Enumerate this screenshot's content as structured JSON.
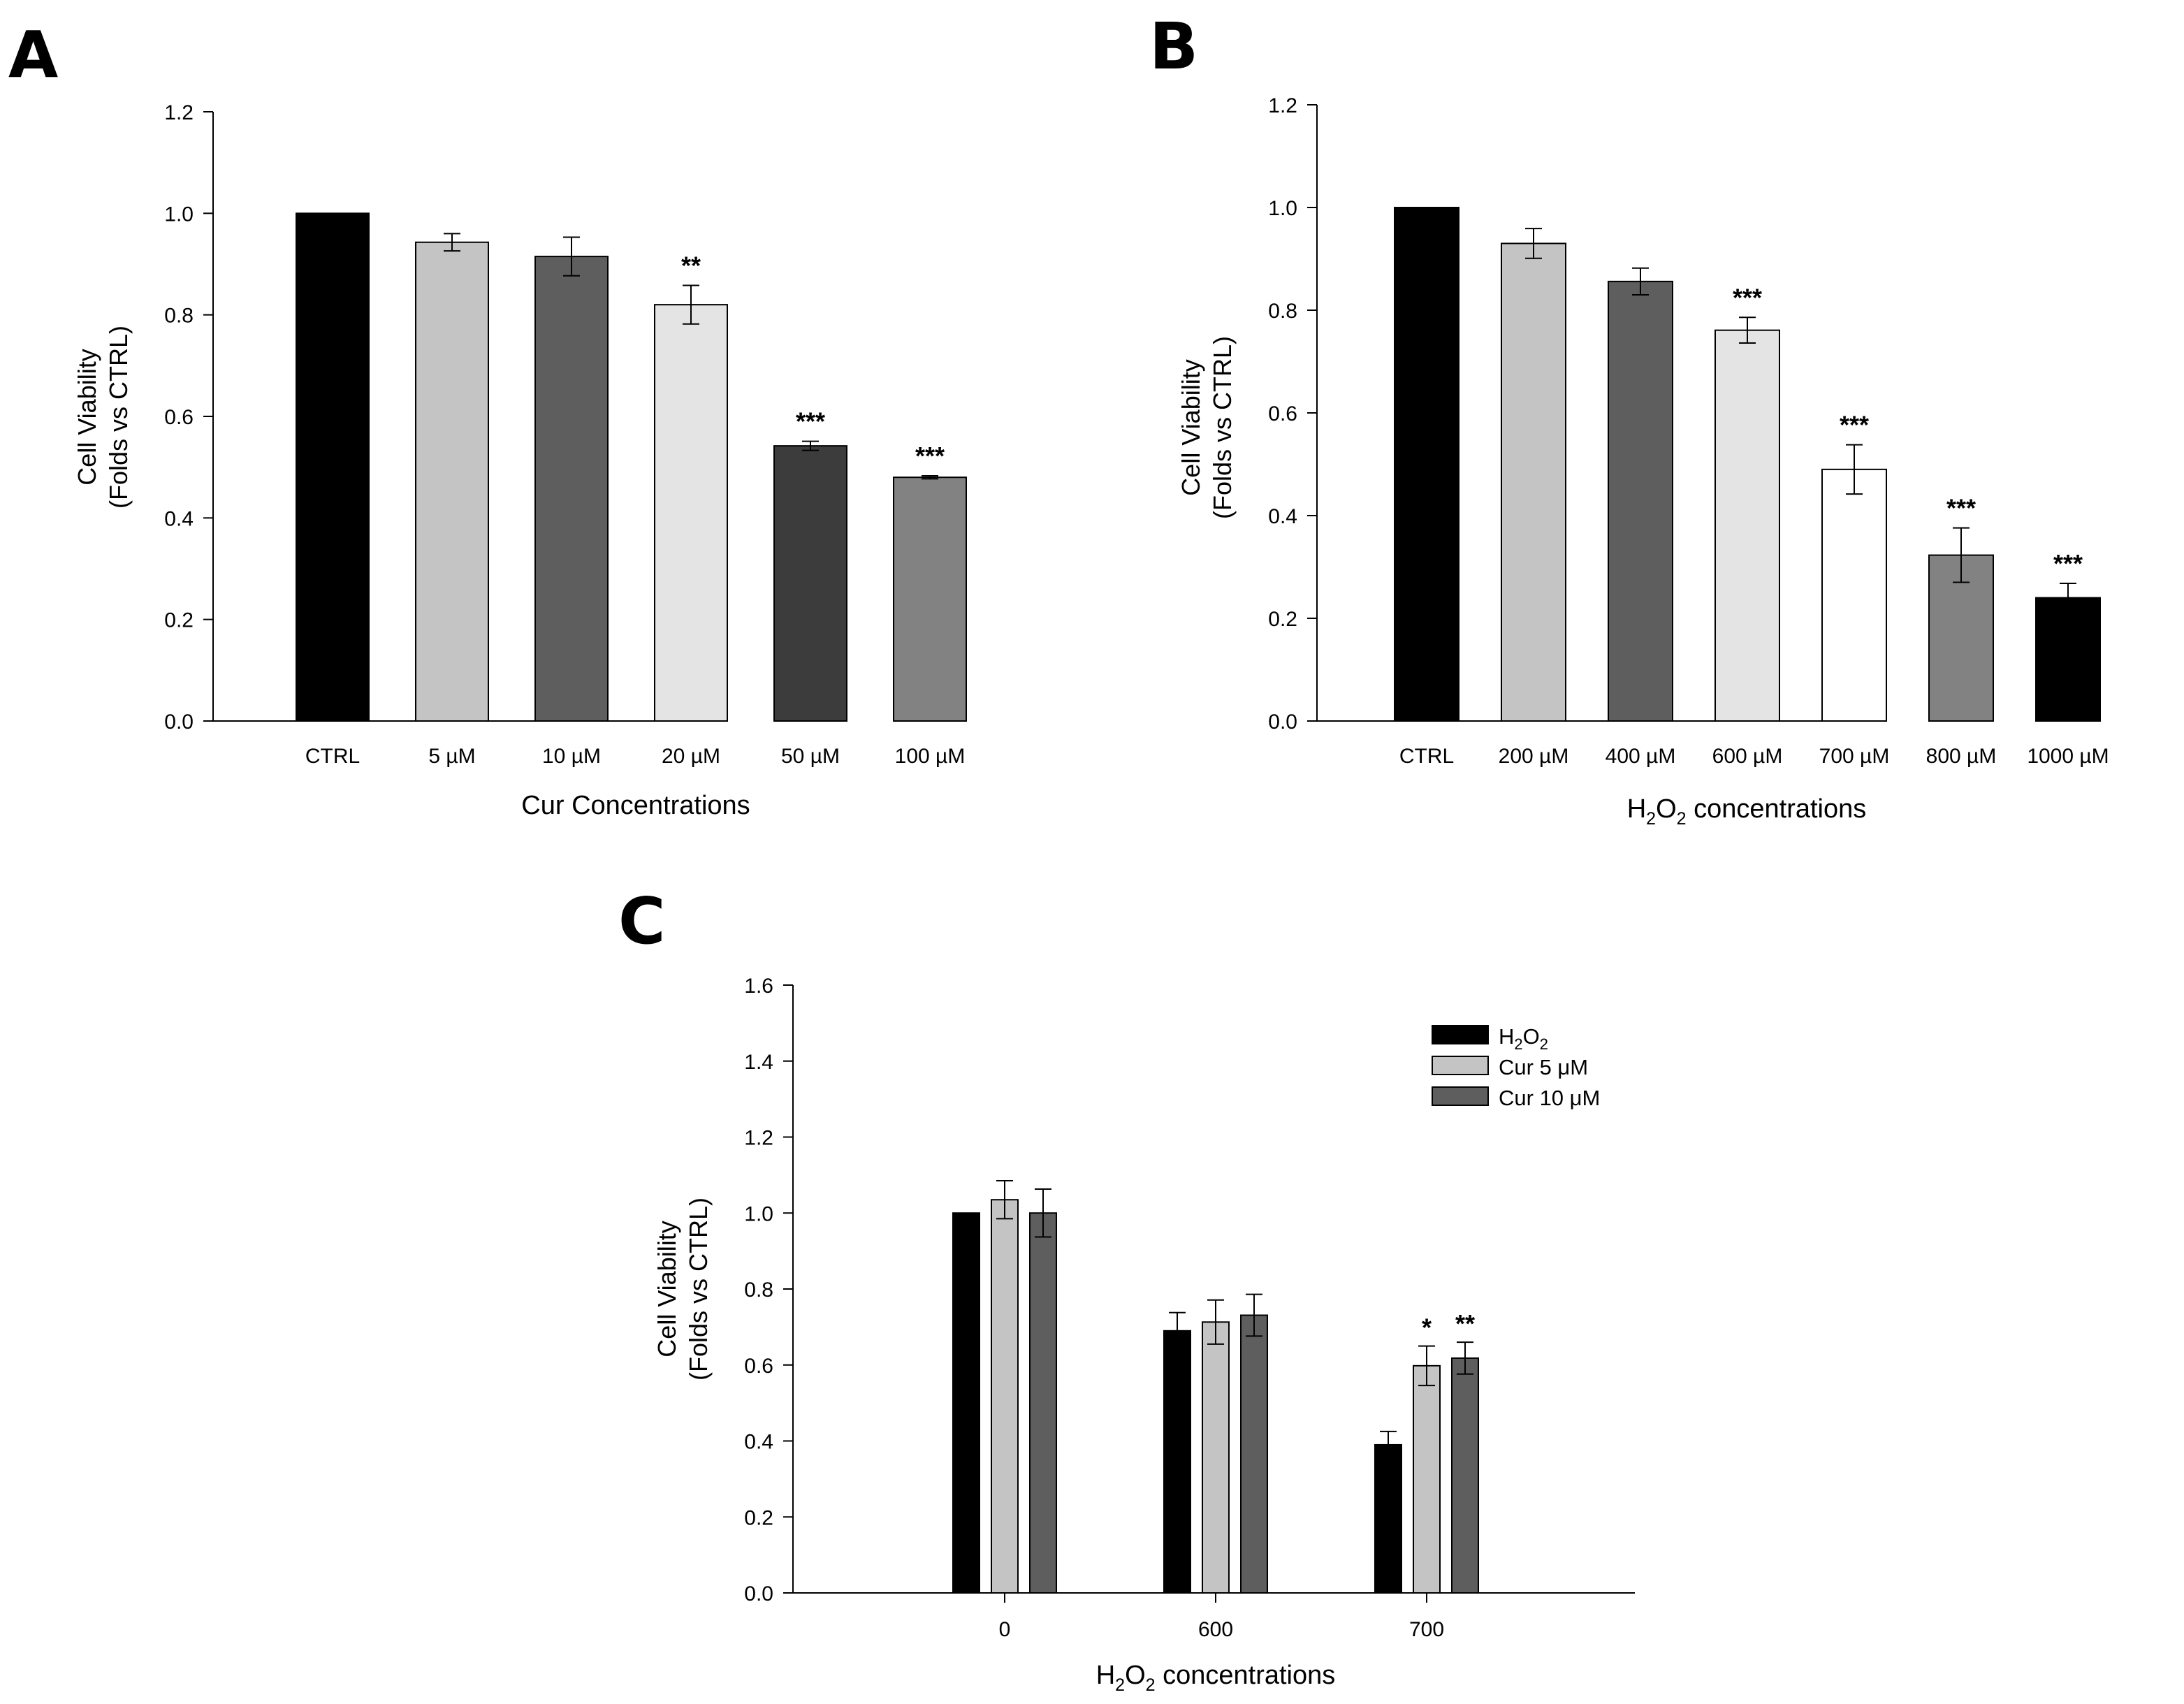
{
  "colors": {
    "black": "#000000",
    "light_gray": "#c4c4c4",
    "dark_gray": "#5e5e5e",
    "very_light_gray": "#e4e4e4",
    "charcoal": "#3c3c3c",
    "mid_gray": "#828282",
    "white": "#ffffff"
  },
  "chart_data": [
    {
      "panel": "A",
      "type": "bar",
      "title": "",
      "ylabel_line1": "Cell Viability",
      "ylabel_line2": "(Folds vs CTRL)",
      "xlabel": "Cur Concentrations",
      "ylim": [
        0,
        1.2
      ],
      "yticks": [
        "0.0",
        "0.2",
        "0.4",
        "0.6",
        "0.8",
        "1.0",
        "1.2"
      ],
      "categories": [
        "CTRL",
        "5 µM",
        "10 µM",
        "20 µM",
        "50 µM",
        "100 µM"
      ],
      "values": [
        1.0,
        0.943,
        0.915,
        0.82,
        0.542,
        0.48
      ],
      "errors": [
        0.0,
        0.017,
        0.038,
        0.038,
        0.009,
        0.003
      ],
      "significance": [
        "",
        "",
        "",
        "**",
        "***",
        "***"
      ],
      "bar_colors": [
        "#000000",
        "#c4c4c4",
        "#5e5e5e",
        "#e4e4e4",
        "#3c3c3c",
        "#828282"
      ]
    },
    {
      "panel": "B",
      "type": "bar",
      "title": "",
      "ylabel_line1": "Cell Viability",
      "ylabel_line2": "(Folds vs CTRL)",
      "xlabel_pre": "H",
      "xlabel_sub1": "2",
      "xlabel_mid": "O",
      "xlabel_sub2": "2",
      "xlabel_post": " concentrations",
      "ylim": [
        0,
        1.2
      ],
      "yticks": [
        "0.0",
        "0.2",
        "0.4",
        "0.6",
        "0.8",
        "1.0",
        "1.2"
      ],
      "categories": [
        "CTRL",
        "200 µM",
        "400 µM",
        "600 µM",
        "700 µM",
        "800 µM",
        "1000 µM"
      ],
      "values": [
        1.0,
        0.93,
        0.856,
        0.761,
        0.49,
        0.323,
        0.24
      ],
      "errors": [
        0.0,
        0.029,
        0.026,
        0.025,
        0.048,
        0.053,
        0.028
      ],
      "significance": [
        "",
        "",
        "",
        "***",
        "***",
        "***",
        "***"
      ],
      "bar_colors": [
        "#000000",
        "#c4c4c4",
        "#5e5e5e",
        "#e4e4e4",
        "#ffffff",
        "#828282",
        "#000000"
      ]
    },
    {
      "panel": "C",
      "type": "bar",
      "title": "",
      "ylabel_line1": "Cell Viability",
      "ylabel_line2": "(Folds vs CTRL)",
      "xlabel_pre": "H",
      "xlabel_sub1": "2",
      "xlabel_mid": "O",
      "xlabel_sub2": "2",
      "xlabel_post": " concentrations",
      "ylim": [
        0,
        1.6
      ],
      "yticks": [
        "0.0",
        "0.2",
        "0.4",
        "0.6",
        "0.8",
        "1.0",
        "1.2",
        "1.4",
        "1.6"
      ],
      "categories": [
        "0",
        "600",
        "700"
      ],
      "series": [
        {
          "name_pre": "H",
          "name_sub1": "2",
          "name_mid": "O",
          "name_sub2": "2",
          "name": "H2O2",
          "color": "#000000",
          "values": [
            1.0,
            0.69,
            0.39
          ],
          "errors": [
            0.0,
            0.048,
            0.035
          ],
          "significance": [
            "",
            "",
            ""
          ]
        },
        {
          "name": "Cur 5 μM",
          "color": "#c4c4c4",
          "values": [
            1.035,
            0.713,
            0.598
          ],
          "errors": [
            0.05,
            0.058,
            0.052
          ],
          "significance": [
            "",
            "",
            "*"
          ]
        },
        {
          "name": "Cur 10 μM",
          "color": "#5e5e5e",
          "values": [
            1.0,
            0.731,
            0.618
          ],
          "errors": [
            0.063,
            0.055,
            0.042
          ],
          "significance": [
            "",
            "",
            "**"
          ]
        }
      ]
    }
  ]
}
